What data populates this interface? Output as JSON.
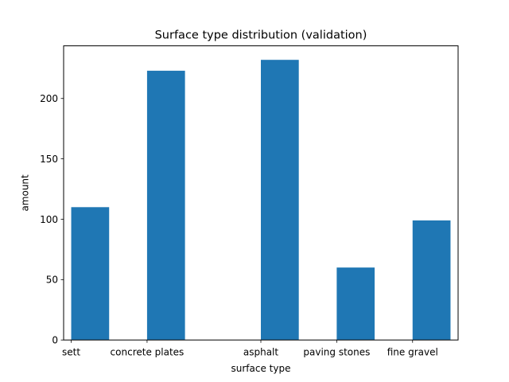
{
  "chart_data": {
    "type": "bar",
    "title": "Surface type distribution (validation)",
    "xlabel": "surface type",
    "ylabel": "amount",
    "categories": [
      {
        "label": "sett",
        "x": 0.0
      },
      {
        "label": "concrete plates",
        "x": 1.0
      },
      {
        "label": "asphalt",
        "x": 2.5
      },
      {
        "label": "paving stones",
        "x": 3.5
      },
      {
        "label": "fine gravel",
        "x": 4.5
      }
    ],
    "bars": [
      {
        "x": 0.25,
        "value": 110
      },
      {
        "x": 1.25,
        "value": 223
      },
      {
        "x": 2.75,
        "value": 232
      },
      {
        "x": 3.75,
        "value": 60
      },
      {
        "x": 4.75,
        "value": 99
      }
    ],
    "bar_width": 0.5,
    "xlim": [
      -0.1,
      5.1
    ],
    "ylim": [
      0,
      243.6
    ],
    "yticks": [
      0,
      50,
      100,
      150,
      200
    ],
    "bar_color": "#1f77b4",
    "grid": false,
    "legend": "none"
  }
}
